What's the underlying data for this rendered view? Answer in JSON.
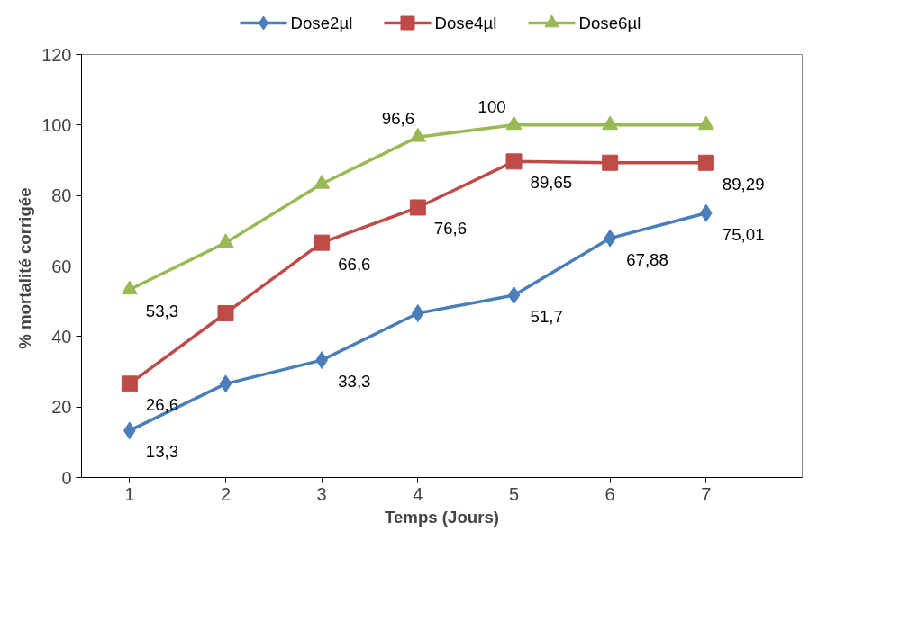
{
  "chart_data": {
    "type": "line",
    "xlabel": "Temps (Jours)",
    "ylabel": "% mortalité  corrigée",
    "categories": [
      "1",
      "2",
      "3",
      "4",
      "5",
      "6",
      "7"
    ],
    "ylim": [
      0,
      120
    ],
    "yticks": [
      0,
      20,
      40,
      60,
      80,
      100,
      120
    ],
    "grid": false,
    "legend": "top",
    "line_style": "solid",
    "series": [
      {
        "name": "Dose2µl",
        "color": "#4a7ebb",
        "marker": "diamond",
        "values": [
          13.3,
          26.6,
          33.3,
          46.6,
          51.7,
          67.88,
          75.01
        ],
        "value_labels": [
          "13,3",
          null,
          "33,3",
          null,
          "51,7",
          "67,88",
          "75,01"
        ]
      },
      {
        "name": "Dose4µl",
        "color": "#be4b48",
        "marker": "square",
        "values": [
          26.6,
          46.6,
          66.6,
          76.6,
          89.65,
          89.3,
          89.29
        ],
        "value_labels": [
          "26,6",
          null,
          "66,6",
          "76,6",
          "89,65",
          null,
          "89,29"
        ]
      },
      {
        "name": "Dose6µl",
        "color": "#98b954",
        "marker": "triangle",
        "values": [
          53.3,
          66.6,
          83.3,
          96.6,
          100,
          100,
          100
        ],
        "value_labels": [
          "53,3",
          null,
          null,
          "96,6",
          "100",
          null,
          null
        ]
      }
    ]
  }
}
